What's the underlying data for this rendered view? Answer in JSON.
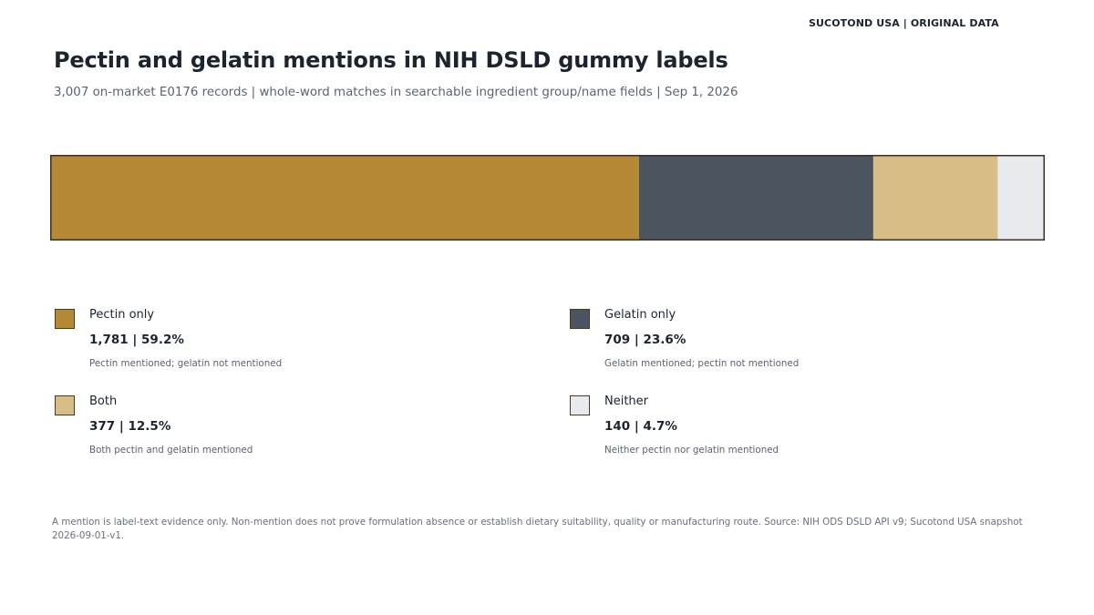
{
  "header": {
    "brand": "SUCOTOND USA | ORIGINAL DATA",
    "title": "Pectin and gelatin mentions in NIH DSLD gummy labels",
    "subtitle": "3,007 on-market E0176 records | whole-word matches in searchable ingredient group/name fields | Sep 1, 2026"
  },
  "chart_data": {
    "type": "bar",
    "orientation": "horizontal-stacked",
    "title": "Pectin and gelatin mentions in NIH DSLD gummy labels",
    "subtitle": "3,007 on-market E0176 records | whole-word matches in searchable ingredient group/name fields | Sep 1, 2026",
    "total": 3007,
    "categories": [
      "Pectin only",
      "Gelatin only",
      "Both",
      "Neither"
    ],
    "values": [
      1781,
      709,
      377,
      140
    ],
    "percent_labels": [
      "59.2%",
      "23.6%",
      "12.5%",
      "4.7%"
    ],
    "colors": [
      "#b58935",
      "#4a5560",
      "#d8be86",
      "#e8ebee"
    ],
    "grid": false,
    "legend_placement": "below"
  },
  "legend": [
    {
      "label": "Pectin only",
      "value": "1,781 | 59.2%",
      "desc": "Pectin mentioned; gelatin not mentioned"
    },
    {
      "label": "Gelatin only",
      "value": "709 | 23.6%",
      "desc": "Gelatin mentioned; pectin not mentioned"
    },
    {
      "label": "Both",
      "value": "377 | 12.5%",
      "desc": "Both pectin and gelatin mentioned"
    },
    {
      "label": "Neither",
      "value": "140 | 4.7%",
      "desc": "Neither pectin nor gelatin mentioned"
    }
  ],
  "footnote": "A mention is label-text evidence only. Non-mention does not prove formulation absence or establish dietary suitability, quality or manufacturing route. Source: NIH ODS DSLD API v9; Sucotond USA snapshot 2026-09-01-v1."
}
